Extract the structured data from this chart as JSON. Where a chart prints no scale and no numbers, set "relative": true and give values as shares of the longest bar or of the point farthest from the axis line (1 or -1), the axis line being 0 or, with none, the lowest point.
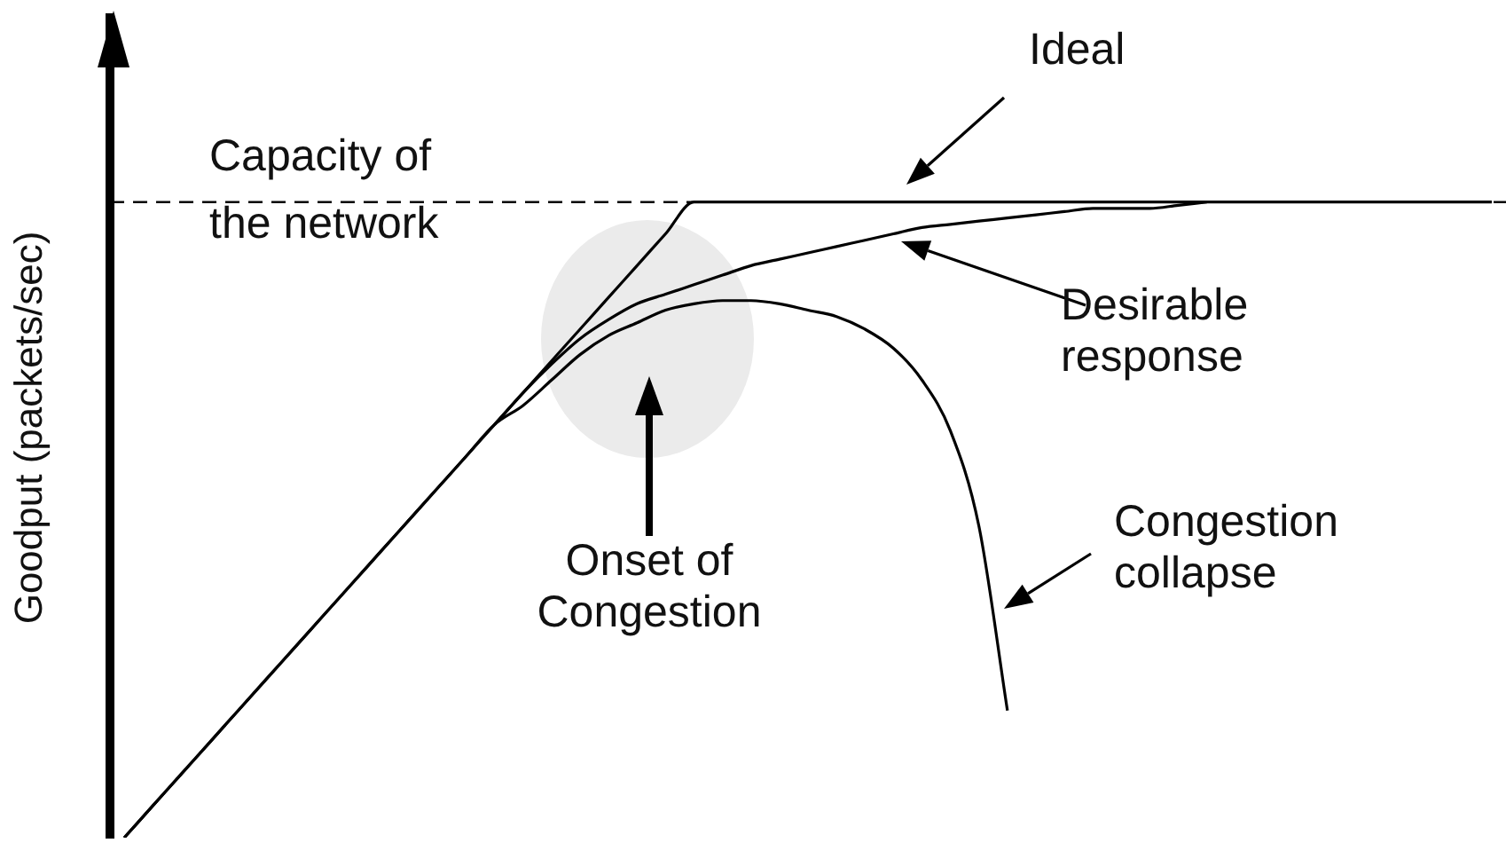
{
  "chart_data": {
    "type": "line",
    "relative": true,
    "ylabel": "Goodput (packets/sec)",
    "marker": "none",
    "categories": [
      null,
      null,
      null,
      null,
      null,
      null,
      null,
      null,
      null,
      null,
      null,
      null,
      null,
      null,
      null,
      null,
      null,
      null,
      null,
      null,
      null,
      null,
      null,
      null,
      null,
      null,
      null,
      null,
      null,
      null,
      null,
      null,
      null,
      null,
      null,
      null,
      null,
      null,
      null,
      null,
      null,
      null,
      null,
      null,
      null,
      null,
      null,
      null,
      null
    ],
    "series": [
      {
        "name": "Ideal",
        "color": "#000000",
        "values": [
          0,
          0.05,
          0.1,
          0.15,
          0.2,
          0.25,
          0.3,
          0.35,
          0.4,
          0.45,
          0.5,
          0.55,
          0.6,
          0.65,
          0.7,
          0.75,
          0.8,
          0.85,
          0.9,
          0.95,
          1,
          1,
          1,
          1,
          1,
          1,
          1,
          1,
          1,
          1,
          1,
          1,
          1,
          1,
          1,
          1,
          1,
          1,
          1,
          1,
          1,
          1,
          1,
          1,
          1,
          1,
          1,
          1,
          1
        ]
      },
      {
        "name": "Desirable response",
        "color": "#000000",
        "values": [
          null,
          null,
          null,
          null,
          null,
          null,
          null,
          null,
          null,
          null,
          null,
          null,
          null,
          0.65,
          0.7,
          0.745,
          0.785,
          0.815,
          0.84,
          0.855,
          0.87,
          0.885,
          0.9,
          0.91,
          0.92,
          0.93,
          0.94,
          0.95,
          0.96,
          0.965,
          0.97,
          0.975,
          0.98,
          0.985,
          0.99,
          0.99,
          0.99,
          0.995,
          1,
          null,
          null,
          null,
          null,
          null,
          null,
          null,
          null,
          null,
          null
        ]
      },
      {
        "name": "Congestion collapse",
        "color": "#000000",
        "values": [
          0,
          0.05,
          0.1,
          0.15,
          0.2,
          0.25,
          0.3,
          0.35,
          0.4,
          0.45,
          0.5,
          0.55,
          0.6,
          0.65,
          0.68,
          0.72,
          0.76,
          0.79,
          0.81,
          0.83,
          0.84,
          0.845,
          0.845,
          0.84,
          0.83,
          0.82,
          0.8,
          0.77,
          0.72,
          0.64,
          0.49,
          0.2,
          null,
          null,
          null,
          null,
          null,
          null,
          null,
          null,
          null,
          null,
          null,
          null,
          null,
          null,
          null,
          null,
          null
        ]
      }
    ],
    "ref_lines": [
      {
        "axis": "y",
        "value": 1,
        "label": "Capacity of the network",
        "line_style": "dashed"
      }
    ],
    "annotations": [
      "Onset of Congestion"
    ]
  }
}
